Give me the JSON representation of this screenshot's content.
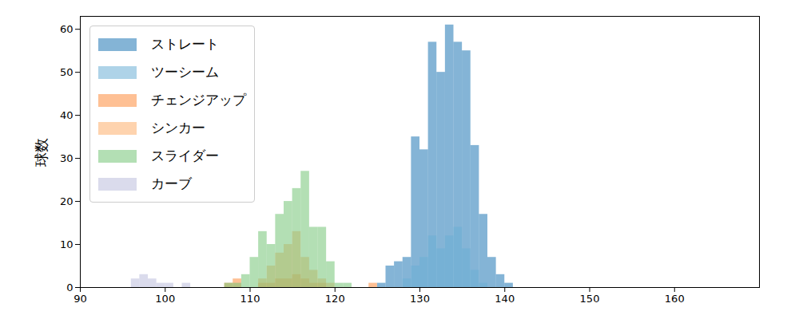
{
  "chart_data": {
    "type": "histogram",
    "y_label": "球数",
    "xlim": [
      90,
      170
    ],
    "xticks": [
      90,
      100,
      110,
      120,
      130,
      140,
      150,
      160
    ],
    "ylim": [
      0,
      63
    ],
    "yticks": [
      0,
      10,
      20,
      30,
      40,
      50,
      60
    ],
    "grid": false,
    "legend": "upper left",
    "series": [
      {
        "name": "ストレート",
        "color": "#1f77b4",
        "bins": [
          125,
          126,
          127,
          128,
          129,
          130,
          131,
          132,
          133,
          134,
          135,
          136,
          137,
          138,
          139,
          140,
          141
        ],
        "values": [
          1,
          5,
          6,
          7,
          35,
          32,
          57,
          50,
          61,
          57,
          55,
          33,
          17,
          7,
          3,
          1
        ]
      },
      {
        "name": "ツーシーム",
        "color": "#6baed6",
        "bins": [
          128,
          129,
          130,
          131,
          132,
          133,
          134,
          135,
          136,
          137,
          138
        ],
        "values": [
          2,
          5,
          7,
          12,
          9,
          12,
          14,
          9,
          4,
          1
        ]
      },
      {
        "name": "チェンジアップ",
        "color": "#fd8d3c",
        "bins": [
          107,
          108,
          109,
          110,
          111,
          112,
          113,
          114,
          115,
          116,
          117,
          118,
          119,
          120,
          121,
          122,
          123,
          124,
          125
        ],
        "values": [
          1,
          2,
          0,
          0,
          1,
          1,
          2,
          2,
          3,
          2,
          1,
          1,
          0,
          0,
          0,
          0,
          0,
          1
        ]
      },
      {
        "name": "シンカー",
        "color": "#fdae6b",
        "bins": [
          111,
          112,
          113,
          114,
          115,
          116,
          117,
          118,
          119,
          120
        ],
        "values": [
          2,
          5,
          8,
          10,
          13,
          7,
          4,
          2,
          1
        ]
      },
      {
        "name": "スライダー",
        "color": "#74c476",
        "bins": [
          107,
          108,
          109,
          110,
          111,
          112,
          113,
          114,
          115,
          116,
          117,
          118,
          119,
          120,
          121,
          122
        ],
        "values": [
          1,
          1,
          3,
          7,
          13,
          10,
          17,
          20,
          23,
          27,
          14,
          14,
          6,
          1,
          1
        ]
      },
      {
        "name": "カーブ",
        "color": "#bcbddc",
        "bins": [
          96,
          97,
          98,
          99,
          100,
          101,
          102,
          103
        ],
        "values": [
          2,
          3,
          2,
          1,
          1,
          0,
          1
        ]
      }
    ]
  }
}
